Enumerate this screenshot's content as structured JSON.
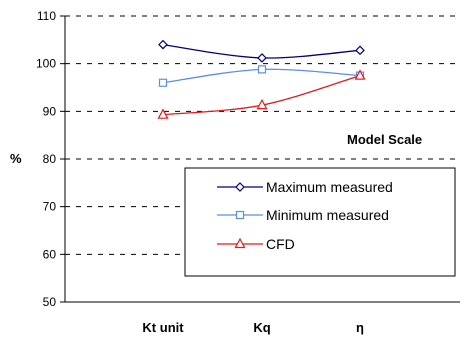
{
  "chart_data": {
    "type": "line",
    "title": "",
    "annotation": "Model Scale",
    "ylabel": "%",
    "xlabel": "",
    "categories": [
      "Kt unit",
      "Kq",
      "η"
    ],
    "ylim": [
      50,
      110
    ],
    "yticks": [
      50,
      60,
      70,
      80,
      90,
      100,
      110
    ],
    "grid": true,
    "legend_position": "right",
    "series": [
      {
        "name": "Maximum measured",
        "values": [
          104,
          101.2,
          102.8
        ],
        "color": "#000080",
        "marker": "diamond"
      },
      {
        "name": "Minimum measured",
        "values": [
          96,
          98.8,
          97.5
        ],
        "color": "#5b8ee6",
        "marker": "square"
      },
      {
        "name": "CFD",
        "values": [
          89.3,
          91.3,
          97.5
        ],
        "color": "#e31a1c",
        "marker": "triangle"
      }
    ]
  }
}
